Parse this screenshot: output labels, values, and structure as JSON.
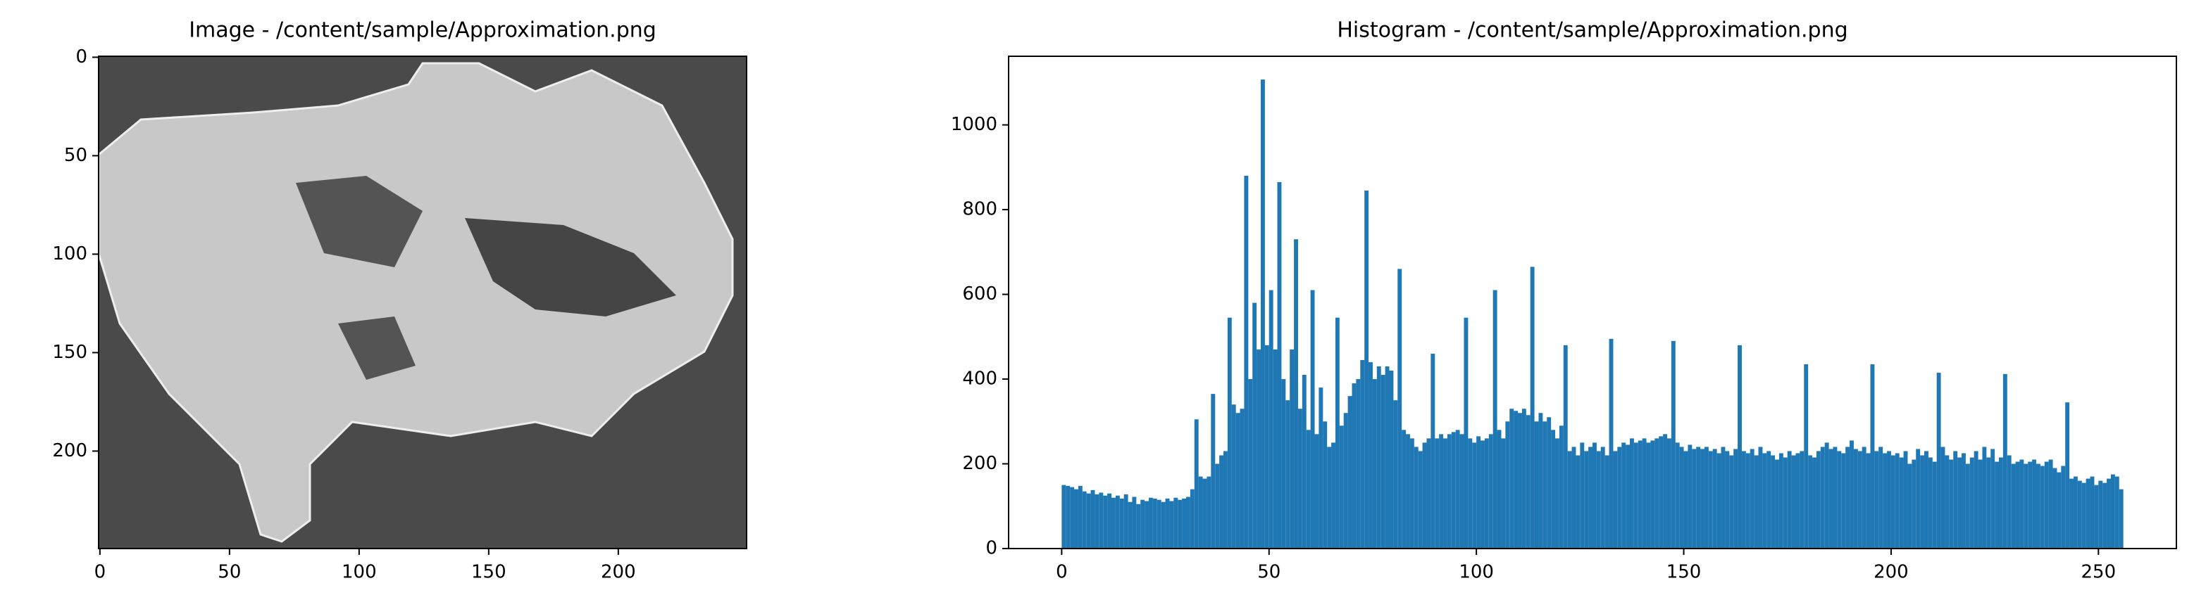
{
  "chart_data": [
    {
      "type": "image",
      "title": "Image - /content/sample/Approximation.png",
      "xlim": [
        -0.5,
        249.5
      ],
      "ylim": [
        249.5,
        -0.5
      ],
      "xticks": [
        0,
        50,
        100,
        150,
        200
      ],
      "yticks": [
        0,
        50,
        100,
        150,
        200
      ]
    },
    {
      "type": "histogram",
      "title": "Histogram - /content/sample/Approximation.png",
      "color": "#1f77b4",
      "bins": [
        0,
        1,
        2,
        3,
        4,
        5,
        6,
        7,
        8,
        9,
        10,
        11,
        12,
        13,
        14,
        15,
        16,
        17,
        18,
        19,
        20,
        21,
        22,
        23,
        24,
        25,
        26,
        27,
        28,
        29,
        30,
        31,
        32,
        33,
        34,
        35,
        36,
        37,
        38,
        39,
        40,
        41,
        42,
        43,
        44,
        45,
        46,
        47,
        48,
        49,
        50,
        51,
        52,
        53,
        54,
        55,
        56,
        57,
        58,
        59,
        60,
        61,
        62,
        63,
        64,
        65,
        66,
        67,
        68,
        69,
        70,
        71,
        72,
        73,
        74,
        75,
        76,
        77,
        78,
        79,
        80,
        81,
        82,
        83,
        84,
        85,
        86,
        87,
        88,
        89,
        90,
        91,
        92,
        93,
        94,
        95,
        96,
        97,
        98,
        99,
        100,
        101,
        102,
        103,
        104,
        105,
        106,
        107,
        108,
        109,
        110,
        111,
        112,
        113,
        114,
        115,
        116,
        117,
        118,
        119,
        120,
        121,
        122,
        123,
        124,
        125,
        126,
        127,
        128,
        129,
        130,
        131,
        132,
        133,
        134,
        135,
        136,
        137,
        138,
        139,
        140,
        141,
        142,
        143,
        144,
        145,
        146,
        147,
        148,
        149,
        150,
        151,
        152,
        153,
        154,
        155,
        156,
        157,
        158,
        159,
        160,
        161,
        162,
        163,
        164,
        165,
        166,
        167,
        168,
        169,
        170,
        171,
        172,
        173,
        174,
        175,
        176,
        177,
        178,
        179,
        180,
        181,
        182,
        183,
        184,
        185,
        186,
        187,
        188,
        189,
        190,
        191,
        192,
        193,
        194,
        195,
        196,
        197,
        198,
        199,
        200,
        201,
        202,
        203,
        204,
        205,
        206,
        207,
        208,
        209,
        210,
        211,
        212,
        213,
        214,
        215,
        216,
        217,
        218,
        219,
        220,
        221,
        222,
        223,
        224,
        225,
        226,
        227,
        228,
        229,
        230,
        231,
        232,
        233,
        234,
        235,
        236,
        237,
        238,
        239,
        240,
        241,
        242,
        243,
        244,
        245,
        246,
        247,
        248,
        249,
        250,
        251,
        252,
        253,
        254,
        255,
        256
      ],
      "values": [
        150,
        148,
        145,
        140,
        148,
        135,
        130,
        138,
        128,
        132,
        125,
        130,
        120,
        125,
        118,
        128,
        110,
        122,
        105,
        115,
        112,
        120,
        118,
        115,
        110,
        118,
        112,
        120,
        115,
        118,
        122,
        140,
        305,
        170,
        165,
        170,
        365,
        200,
        220,
        230,
        545,
        340,
        320,
        330,
        880,
        400,
        580,
        470,
        1107,
        480,
        610,
        470,
        865,
        400,
        350,
        470,
        730,
        330,
        410,
        280,
        610,
        270,
        380,
        300,
        240,
        250,
        545,
        290,
        320,
        360,
        390,
        400,
        445,
        845,
        440,
        400,
        430,
        410,
        430,
        420,
        350,
        660,
        280,
        270,
        260,
        240,
        230,
        250,
        260,
        460,
        260,
        270,
        260,
        270,
        275,
        280,
        270,
        545,
        260,
        250,
        265,
        255,
        260,
        270,
        610,
        280,
        260,
        300,
        330,
        325,
        320,
        330,
        315,
        665,
        300,
        320,
        300,
        310,
        280,
        260,
        290,
        480,
        230,
        240,
        220,
        250,
        230,
        240,
        250,
        230,
        240,
        220,
        495,
        230,
        240,
        250,
        245,
        260,
        250,
        255,
        260,
        250,
        255,
        260,
        265,
        270,
        260,
        490,
        250,
        240,
        230,
        245,
        235,
        240,
        235,
        240,
        230,
        235,
        225,
        240,
        230,
        220,
        235,
        480,
        230,
        225,
        235,
        220,
        240,
        225,
        230,
        220,
        210,
        225,
        215,
        230,
        220,
        225,
        230,
        435,
        220,
        215,
        230,
        240,
        250,
        235,
        240,
        230,
        225,
        240,
        255,
        235,
        230,
        240,
        225,
        435,
        230,
        240,
        225,
        230,
        220,
        225,
        215,
        230,
        200,
        210,
        235,
        220,
        230,
        215,
        205,
        415,
        240,
        220,
        210,
        230,
        215,
        225,
        200,
        215,
        230,
        210,
        240,
        215,
        235,
        205,
        215,
        412,
        220,
        200,
        205,
        210,
        200,
        205,
        210,
        200,
        195,
        205,
        210,
        190,
        180,
        195,
        345,
        165,
        170,
        160,
        155,
        165,
        170,
        150,
        160,
        155,
        165,
        175,
        170,
        140
      ],
      "xlim": [
        -12.8,
        268.8
      ],
      "ylim": [
        0,
        1162
      ],
      "xticks": [
        0,
        50,
        100,
        150,
        200,
        250
      ],
      "yticks": [
        0,
        200,
        400,
        600,
        800,
        1000
      ]
    }
  ]
}
